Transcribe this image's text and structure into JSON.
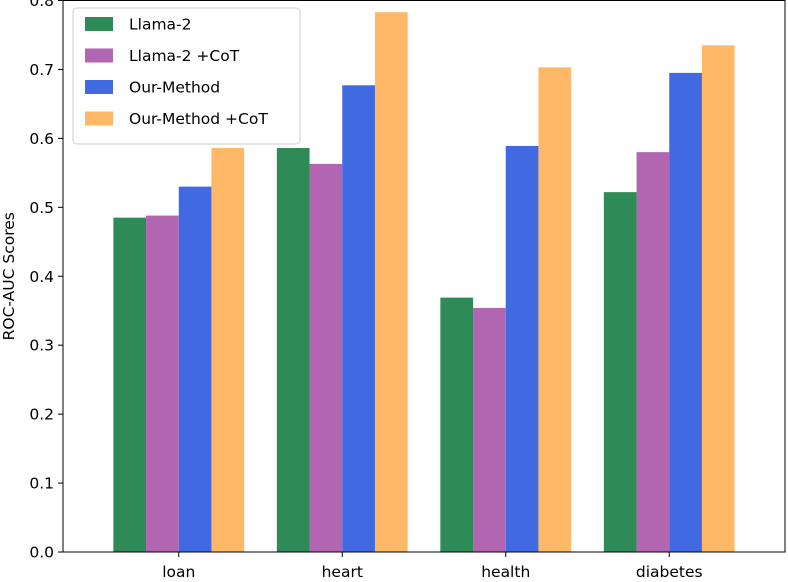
{
  "chart_data": {
    "type": "bar",
    "title": "",
    "xlabel": "",
    "ylabel": "ROC-AUC Scores",
    "ylim": [
      0,
      0.8
    ],
    "yticks": [
      "0.0",
      "0.1",
      "0.2",
      "0.3",
      "0.4",
      "0.5",
      "0.6",
      "0.7",
      "0.8"
    ],
    "categories": [
      "loan",
      "heart",
      "health",
      "diabetes"
    ],
    "series": [
      {
        "name": "Llama-2",
        "color": "#2e8b57",
        "values": [
          0.485,
          0.586,
          0.369,
          0.522
        ]
      },
      {
        "name": "Llama-2 +CoT",
        "color": "#b266b2",
        "values": [
          0.488,
          0.563,
          0.354,
          0.58
        ]
      },
      {
        "name": "Our-Method",
        "color": "#4169e1",
        "values": [
          0.53,
          0.677,
          0.589,
          0.695
        ]
      },
      {
        "name": "Our-Method +CoT",
        "color": "#ffb966",
        "values": [
          0.586,
          0.783,
          0.703,
          0.735
        ]
      }
    ],
    "grid": false,
    "legend_position": "top-left"
  }
}
